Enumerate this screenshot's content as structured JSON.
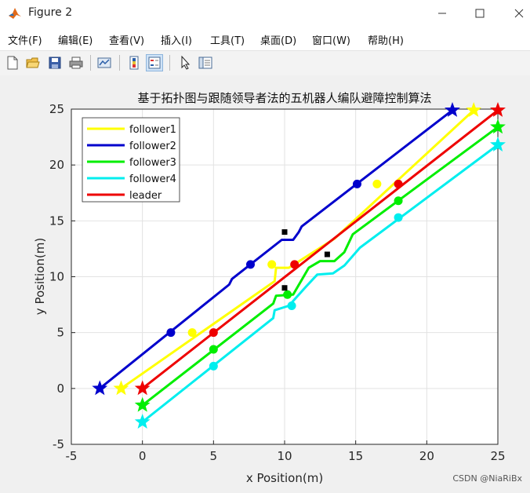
{
  "window": {
    "title": "Figure 2",
    "controls": [
      "minimize",
      "maximize",
      "close"
    ]
  },
  "menu": [
    "文件(F)",
    "编辑(E)",
    "查看(V)",
    "插入(I)",
    "工具(T)",
    "桌面(D)",
    "窗口(W)",
    "帮助(H)"
  ],
  "toolbar": [
    "new-figure-icon",
    "open-icon",
    "save-icon",
    "print-icon",
    "link-plot-icon",
    "colorbar-icon",
    "legend-icon",
    "pointer-icon",
    "property-inspector-icon"
  ],
  "watermark": "CSDN @NiaRiBx",
  "chart_data": {
    "type": "line",
    "title": "基于拓扑图与跟随领导者法的五机器人编队避障控制算法",
    "xlabel": "x Position(m)",
    "ylabel": "y Position(m)",
    "xlim": [
      -5,
      25
    ],
    "ylim": [
      -5,
      25
    ],
    "xticks": [
      -5,
      0,
      5,
      10,
      15,
      20,
      25
    ],
    "yticks": [
      -5,
      0,
      5,
      10,
      15,
      20,
      25
    ],
    "grid": true,
    "legend_position": "top-left",
    "series": [
      {
        "name": "follower1",
        "color": "#ffff00",
        "x": [
          -1.5,
          9.3,
          9.4,
          10.3,
          13.5,
          23.3
        ],
        "y": [
          0.0,
          9.6,
          10.8,
          10.8,
          13.4,
          24.9
        ],
        "markers": [
          [
            -1.5,
            0.0,
            "star"
          ],
          [
            3.5,
            5.0,
            "dot"
          ],
          [
            9.1,
            11.1,
            "dot"
          ],
          [
            16.5,
            18.3,
            "dot"
          ],
          [
            23.3,
            24.9,
            "star"
          ]
        ]
      },
      {
        "name": "follower2",
        "color": "#0000cc",
        "x": [
          -3.0,
          6.1,
          6.3,
          9.8,
          10.6,
          11.0,
          11.2,
          21.8
        ],
        "y": [
          0.0,
          9.3,
          9.8,
          13.3,
          13.3,
          14.0,
          14.5,
          24.9
        ],
        "markers": [
          [
            -3.0,
            0.0,
            "star"
          ],
          [
            2.0,
            5.0,
            "dot"
          ],
          [
            7.6,
            11.1,
            "dot"
          ],
          [
            15.1,
            18.3,
            "dot"
          ],
          [
            21.8,
            24.9,
            "star"
          ]
        ]
      },
      {
        "name": "follower3",
        "color": "#00ee00",
        "x": [
          0.0,
          9.2,
          9.4,
          10.6,
          11.7,
          12.5,
          13.5,
          14.2,
          14.8,
          25.0
        ],
        "y": [
          -1.5,
          7.6,
          8.3,
          8.4,
          10.8,
          11.4,
          11.4,
          12.2,
          13.8,
          23.4
        ],
        "markers": [
          [
            0.0,
            -1.5,
            "star"
          ],
          [
            5.0,
            3.5,
            "dot"
          ],
          [
            10.2,
            8.4,
            "dot"
          ],
          [
            18.0,
            16.8,
            "dot"
          ],
          [
            25.0,
            23.4,
            "star"
          ]
        ]
      },
      {
        "name": "follower4",
        "color": "#00eeee",
        "x": [
          0.0,
          9.2,
          9.3,
          10.3,
          11.5,
          12.3,
          13.4,
          14.2,
          15.3,
          25.0
        ],
        "y": [
          -3.0,
          6.3,
          7.0,
          7.4,
          9.1,
          10.2,
          10.3,
          11.0,
          12.6,
          21.8
        ],
        "markers": [
          [
            0.0,
            -3.0,
            "star"
          ],
          [
            5.0,
            2.0,
            "dot"
          ],
          [
            10.5,
            7.4,
            "dot"
          ],
          [
            18.0,
            15.3,
            "dot"
          ],
          [
            25.0,
            21.8,
            "star"
          ]
        ]
      },
      {
        "name": "leader",
        "color": "#ee0000",
        "x": [
          0.0,
          25.0
        ],
        "y": [
          0.0,
          24.9
        ],
        "markers": [
          [
            0.0,
            0.0,
            "star"
          ],
          [
            5.0,
            5.0,
            "dot"
          ],
          [
            10.7,
            11.1,
            "dot"
          ],
          [
            18.0,
            18.3,
            "dot"
          ],
          [
            25.0,
            24.9,
            "star"
          ]
        ]
      }
    ],
    "obstacles": [
      [
        10.0,
        14.0
      ],
      [
        13.0,
        12.0
      ],
      [
        10.0,
        9.0
      ]
    ]
  }
}
